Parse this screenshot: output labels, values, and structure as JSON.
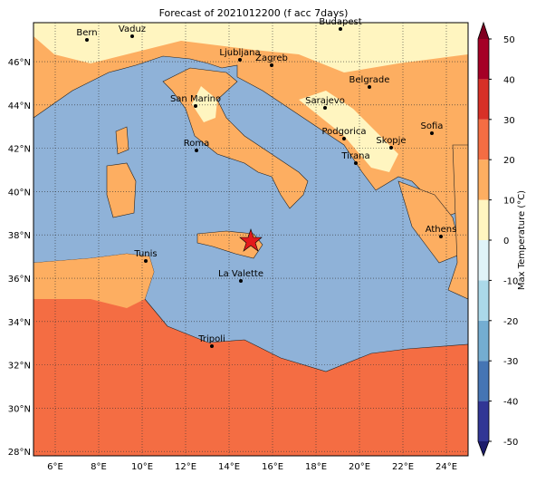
{
  "title": "Forecast of 2021012200 (f acc 7days)",
  "lon_ticks": [
    {
      "value": 6,
      "label": "6°E"
    },
    {
      "value": 8,
      "label": "8°E"
    },
    {
      "value": 10,
      "label": "10°E"
    },
    {
      "value": 12,
      "label": "12°E"
    },
    {
      "value": 14,
      "label": "14°E"
    },
    {
      "value": 16,
      "label": "16°E"
    },
    {
      "value": 18,
      "label": "18°E"
    },
    {
      "value": 20,
      "label": "20°E"
    },
    {
      "value": 22,
      "label": "22°E"
    },
    {
      "value": 24,
      "label": "24°E"
    }
  ],
  "lat_ticks": [
    {
      "value": 28,
      "label": "28°N"
    },
    {
      "value": 30,
      "label": "30°N"
    },
    {
      "value": 32,
      "label": "32°N"
    },
    {
      "value": 34,
      "label": "34°N"
    },
    {
      "value": 36,
      "label": "36°N"
    },
    {
      "value": 38,
      "label": "38°N"
    },
    {
      "value": 40,
      "label": "40°N"
    },
    {
      "value": 42,
      "label": "42°N"
    },
    {
      "value": 44,
      "label": "44°N"
    },
    {
      "value": 46,
      "label": "46°N"
    }
  ],
  "cities": [
    "Bern",
    "Vaduz",
    "Ljubljana",
    "Zagreb",
    "Budapest",
    "Belgrade",
    "San Marino",
    "Sarajevo",
    "Sofia",
    "Podgorica",
    "Skopje",
    "Roma",
    "Tirana",
    "Athens",
    "Tunis",
    "La Valette",
    "Tripoli"
  ],
  "colorbar": {
    "label": "Max Temperature (°C)",
    "ticks": [
      -50,
      -40,
      -30,
      -20,
      -10,
      0,
      10,
      20,
      30,
      40,
      50
    ],
    "colors": [
      "#313695",
      "#4575b4",
      "#74add1",
      "#abd9e9",
      "#e0f3f8",
      "#fff5c0",
      "#fdae61",
      "#f46d43",
      "#d73027",
      "#a50026"
    ],
    "under": "#1c1c6b",
    "over": "#7f0020"
  }
}
